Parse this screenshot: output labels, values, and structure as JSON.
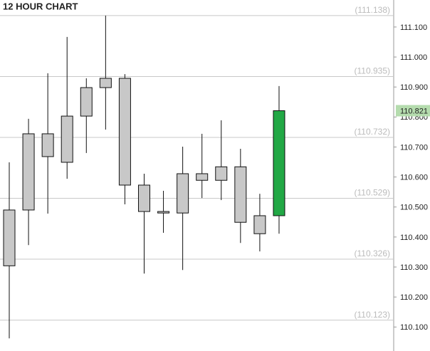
{
  "chart_data": {
    "type": "candlestick",
    "title": "12 HOUR CHART",
    "categories": [
      null,
      null,
      null,
      null,
      null,
      null,
      null,
      null,
      null,
      null,
      null,
      null,
      null,
      null,
      null
    ],
    "open": [
      110.304,
      110.49,
      110.744,
      110.649,
      110.803,
      110.898,
      110.929,
      110.573,
      110.485,
      110.48,
      110.611,
      110.589,
      110.634,
      110.411,
      110.471
    ],
    "high": [
      110.649,
      110.794,
      110.946,
      111.067,
      110.929,
      111.138,
      110.943,
      110.611,
      110.554,
      110.701,
      110.744,
      110.789,
      110.694,
      110.544,
      110.903
    ],
    "low": [
      110.062,
      110.373,
      110.478,
      110.594,
      110.68,
      110.758,
      110.509,
      110.278,
      110.414,
      110.29,
      110.53,
      110.523,
      110.38,
      110.352,
      110.411
    ],
    "close": [
      110.49,
      110.744,
      110.668,
      110.803,
      110.898,
      110.929,
      110.573,
      110.485,
      110.48,
      110.611,
      110.589,
      110.634,
      110.449,
      110.471,
      110.821
    ],
    "colors": [
      "#c8c8c8",
      "#c8c8c8",
      "#c8c8c8",
      "#c8c8c8",
      "#c8c8c8",
      "#c8c8c8",
      "#c8c8c8",
      "#c8c8c8",
      "#c8c8c8",
      "#c8c8c8",
      "#c8c8c8",
      "#c8c8c8",
      "#c8c8c8",
      "#c8c8c8",
      "#22a845"
    ],
    "ylim": [
      110.02,
      111.19
    ],
    "yticks": [
      {
        "value": 110.1,
        "label": "110.100"
      },
      {
        "value": 110.2,
        "label": "110.200"
      },
      {
        "value": 110.3,
        "label": "110.300"
      },
      {
        "value": 110.4,
        "label": "110.400"
      },
      {
        "value": 110.5,
        "label": "110.500"
      },
      {
        "value": 110.6,
        "label": "110.600"
      },
      {
        "value": 110.7,
        "label": "110.700"
      },
      {
        "value": 110.8,
        "label": "110.800"
      },
      {
        "value": 110.9,
        "label": "110.900"
      },
      {
        "value": 111.0,
        "label": "111.000"
      },
      {
        "value": 111.1,
        "label": "111.100"
      }
    ],
    "levels": [
      {
        "value": 111.138,
        "label": "(111.138)"
      },
      {
        "value": 110.935,
        "label": "(110.935)"
      },
      {
        "value": 110.732,
        "label": "(110.732)"
      },
      {
        "value": 110.529,
        "label": "(110.529)"
      },
      {
        "value": 110.326,
        "label": "(110.326)"
      },
      {
        "value": 110.123,
        "label": "(110.123)"
      }
    ],
    "current_price": {
      "value": 110.821,
      "label": "110.821",
      "color": "#b5dcae"
    }
  }
}
